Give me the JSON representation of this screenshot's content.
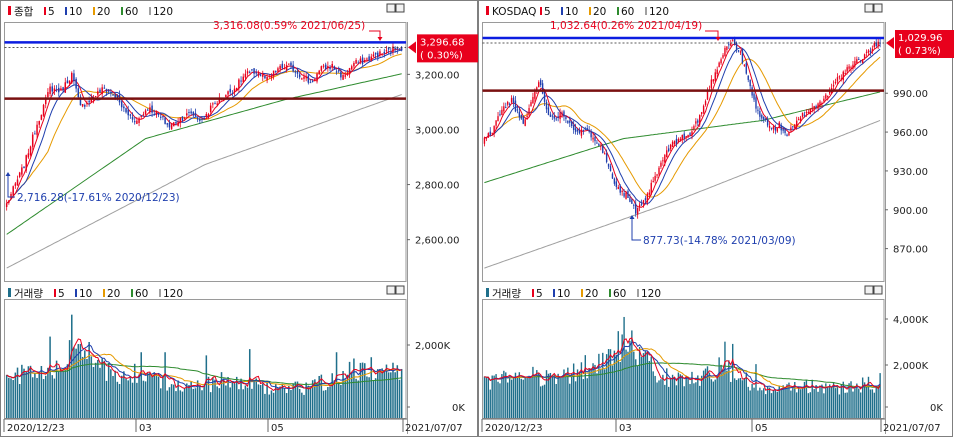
{
  "colors": {
    "up": "#e8001c",
    "down": "#1f3fae",
    "ma5": "#e8001c",
    "ma10": "#1f3fae",
    "ma20": "#e69a00",
    "ma60": "#2e8b2e",
    "ma120": "#a0a0a0",
    "volume": "#1f6f8b",
    "resistance_line": "#0b1de0",
    "support_line": "#7a1010",
    "price_tag_bg": "#e8001c"
  },
  "legend_ma": [
    {
      "label": "5",
      "color": "#e8001c"
    },
    {
      "label": "10",
      "color": "#1f3fae"
    },
    {
      "label": "20",
      "color": "#e69a00"
    },
    {
      "label": "60",
      "color": "#2e8b2e"
    },
    {
      "label": "120",
      "color": "#a0a0a0"
    }
  ],
  "window_buttons": {
    "minimize": "□",
    "close": "✕"
  },
  "chart_data": [
    {
      "type": "candlestick",
      "name": "종합",
      "volume_label": "거래량",
      "x_start": "2020/12/23",
      "x_end": "2021/07/07",
      "x_ticks": [
        "2020/12/23",
        "03",
        "05"
      ],
      "x_end_label": "2021/07/07",
      "y_ticks": [
        "3,200.00",
        "3,000.00",
        "2,800.00",
        "2,600.00"
      ],
      "ylim": [
        2450,
        3390
      ],
      "volume_ticks": [
        "2,000K",
        "0K"
      ],
      "volume_ylim": [
        0,
        3800
      ],
      "current_price": "3,296.68",
      "current_change": "( 0.30%)",
      "resistance": 3316.08,
      "support": 3112,
      "high_annotation": "3,316.08(0.59% 2021/06/25)",
      "low_annotation": "2,716.28(-17.61% 2020/12/23)",
      "low_value": 2716.28,
      "anchors": [
        [
          0,
          2730
        ],
        [
          4,
          2800
        ],
        [
          8,
          2870
        ],
        [
          14,
          3020
        ],
        [
          20,
          3150
        ],
        [
          25,
          3140
        ],
        [
          30,
          3200
        ],
        [
          34,
          3080
        ],
        [
          40,
          3120
        ],
        [
          45,
          3150
        ],
        [
          50,
          3120
        ],
        [
          55,
          3060
        ],
        [
          60,
          3030
        ],
        [
          65,
          3080
        ],
        [
          70,
          3050
        ],
        [
          75,
          3010
        ],
        [
          80,
          3040
        ],
        [
          85,
          3060
        ],
        [
          90,
          3030
        ],
        [
          95,
          3090
        ],
        [
          100,
          3120
        ],
        [
          105,
          3150
        ],
        [
          110,
          3200
        ],
        [
          115,
          3210
        ],
        [
          120,
          3180
        ],
        [
          125,
          3220
        ],
        [
          130,
          3230
        ],
        [
          135,
          3200
        ],
        [
          140,
          3170
        ],
        [
          145,
          3220
        ],
        [
          150,
          3230
        ],
        [
          155,
          3190
        ],
        [
          160,
          3240
        ],
        [
          165,
          3250
        ],
        [
          170,
          3270
        ],
        [
          175,
          3280
        ],
        [
          180,
          3300
        ],
        [
          182,
          3297
        ]
      ],
      "volume_anchors": [
        [
          0,
          1200
        ],
        [
          10,
          1500
        ],
        [
          20,
          1300
        ],
        [
          28,
          1900
        ],
        [
          34,
          2500
        ],
        [
          40,
          1700
        ],
        [
          50,
          1300
        ],
        [
          60,
          1400
        ],
        [
          70,
          1200
        ],
        [
          80,
          1100
        ],
        [
          90,
          1000
        ],
        [
          100,
          1200
        ],
        [
          110,
          1050
        ],
        [
          120,
          1000
        ],
        [
          130,
          900
        ],
        [
          140,
          1000
        ],
        [
          150,
          1250
        ],
        [
          160,
          1500
        ],
        [
          170,
          1600
        ],
        [
          176,
          1500
        ],
        [
          182,
          1400
        ]
      ],
      "volume_spikes": [
        [
          30,
          3300
        ],
        [
          20,
          2600
        ],
        [
          44,
          1900
        ],
        [
          62,
          2100
        ],
        [
          73,
          2100
        ],
        [
          92,
          2000
        ],
        [
          112,
          2200
        ],
        [
          152,
          2100
        ],
        [
          160,
          1900
        ],
        [
          165,
          1750
        ]
      ]
    },
    {
      "type": "candlestick",
      "name": "KOSDAQ",
      "volume_label": "거래량",
      "x_start": "2020/12/23",
      "x_end": "2021/07/07",
      "x_ticks": [
        "2020/12/23",
        "03",
        "05"
      ],
      "x_end_label": "2021/07/07",
      "y_ticks": [
        "990.00",
        "960.00",
        "930.00",
        "900.00",
        "870.00"
      ],
      "ylim": [
        845,
        1045
      ],
      "volume_ticks": [
        "4,000K",
        "2,000K",
        "0K"
      ],
      "volume_ylim": [
        0,
        5300
      ],
      "current_price": "1,029.96",
      "current_change": "( 0.73%)",
      "resistance": 1032.64,
      "support": 992,
      "high_annotation": "1,032.64(0.26% 2021/04/19)",
      "low_annotation": "877.73(-14.78% 2021/03/09)",
      "low_value": 877.73,
      "anchors": [
        [
          0,
          955
        ],
        [
          4,
          960
        ],
        [
          8,
          975
        ],
        [
          14,
          985
        ],
        [
          20,
          965
        ],
        [
          28,
          1000
        ],
        [
          34,
          970
        ],
        [
          40,
          975
        ],
        [
          48,
          960
        ],
        [
          54,
          960
        ],
        [
          60,
          950
        ],
        [
          66,
          925
        ],
        [
          70,
          915
        ],
        [
          74,
          910
        ],
        [
          78,
          898
        ],
        [
          82,
          905
        ],
        [
          88,
          925
        ],
        [
          94,
          945
        ],
        [
          100,
          955
        ],
        [
          106,
          958
        ],
        [
          112,
          975
        ],
        [
          116,
          995
        ],
        [
          120,
          1010
        ],
        [
          124,
          1025
        ],
        [
          128,
          1030
        ],
        [
          132,
          1020
        ],
        [
          136,
          1000
        ],
        [
          140,
          978
        ],
        [
          144,
          970
        ],
        [
          148,
          962
        ],
        [
          152,
          965
        ],
        [
          156,
          958
        ],
        [
          160,
          965
        ],
        [
          165,
          975
        ],
        [
          170,
          980
        ],
        [
          175,
          985
        ],
        [
          180,
          998
        ],
        [
          185,
          1005
        ],
        [
          190,
          1012
        ],
        [
          195,
          1018
        ],
        [
          200,
          1025
        ],
        [
          204,
          1030
        ]
      ],
      "volume_anchors": [
        [
          0,
          1500
        ],
        [
          12,
          1800
        ],
        [
          24,
          2000
        ],
        [
          36,
          1700
        ],
        [
          48,
          2000
        ],
        [
          60,
          2400
        ],
        [
          66,
          3000
        ],
        [
          72,
          3200
        ],
        [
          78,
          2700
        ],
        [
          84,
          2400
        ],
        [
          90,
          2000
        ],
        [
          96,
          1700
        ],
        [
          102,
          1700
        ],
        [
          112,
          1900
        ],
        [
          120,
          2200
        ],
        [
          128,
          2100
        ],
        [
          134,
          1700
        ],
        [
          140,
          1300
        ],
        [
          150,
          1200
        ],
        [
          160,
          1300
        ],
        [
          170,
          1400
        ],
        [
          180,
          1300
        ],
        [
          190,
          1400
        ],
        [
          200,
          1500
        ],
        [
          204,
          1500
        ]
      ],
      "volume_spikes": [
        [
          72,
          4500
        ],
        [
          76,
          3900
        ],
        [
          67,
          3000
        ],
        [
          52,
          2800
        ],
        [
          84,
          2900
        ],
        [
          124,
          3400
        ],
        [
          128,
          3300
        ],
        [
          140,
          2400
        ],
        [
          204,
          2000
        ]
      ]
    }
  ]
}
